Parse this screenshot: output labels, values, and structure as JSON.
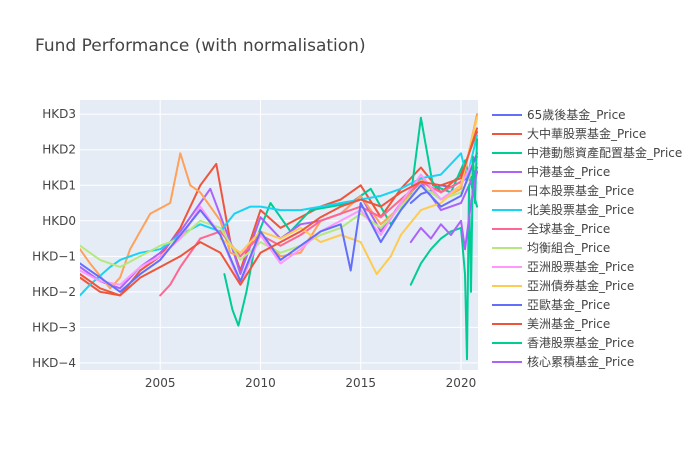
{
  "chart_data": {
    "type": "line",
    "title": "Fund Performance (with normalisation)",
    "xlabel": "",
    "ylabel": "",
    "xlim": [
      2001.0,
      2020.85
    ],
    "ylim": [
      -4.2,
      3.4
    ],
    "x_ticks": [
      2005,
      2010,
      2015,
      2020
    ],
    "y_ticks": [
      {
        "value": 3,
        "label": "HKD3"
      },
      {
        "value": 2,
        "label": "HKD2"
      },
      {
        "value": 1,
        "label": "HKD1"
      },
      {
        "value": 0,
        "label": "HKD0"
      },
      {
        "value": -1,
        "label": "HKD−1"
      },
      {
        "value": -2,
        "label": "HKD−2"
      },
      {
        "value": -3,
        "label": "HKD−3"
      },
      {
        "value": -4,
        "label": "HKD−4"
      }
    ],
    "grid": true,
    "legend_position": "right",
    "series": [
      {
        "name": "65歲後基金_Price",
        "color": "#636efa",
        "x": [
          2017.5,
          2018.0,
          2018.5,
          2019.0,
          2019.5,
          2020.0,
          2020.3,
          2020.6,
          2020.8
        ],
        "y": [
          0.5,
          0.75,
          0.85,
          1.0,
          0.95,
          1.1,
          1.2,
          1.25,
          1.35
        ]
      },
      {
        "name": "大中華股票基金_Price",
        "color": "#ef553b",
        "x": [
          2001.0,
          2002.0,
          2003.0,
          2004.0,
          2005.0,
          2006.0,
          2007.0,
          2007.8,
          2008.5,
          2009.0,
          2010.0,
          2011.0,
          2012.0,
          2013.0,
          2014.0,
          2015.0,
          2016.0,
          2017.0,
          2018.0,
          2019.0,
          2020.0,
          2020.8
        ],
        "y": [
          -1.6,
          -2.0,
          -2.1,
          -1.4,
          -1.0,
          -0.2,
          1.0,
          1.6,
          -0.6,
          -1.4,
          0.3,
          -0.2,
          0.1,
          0.4,
          0.6,
          1.0,
          0.1,
          0.9,
          1.5,
          0.8,
          1.3,
          2.5
        ]
      },
      {
        "name": "中港動態資產配置基金_Price",
        "color": "#00cc96",
        "x": [
          2008.2,
          2008.6,
          2008.9,
          2009.3,
          2009.8,
          2010.5,
          2011.5,
          2012.5,
          2013.5,
          2014.5,
          2015.5,
          2016.5,
          2017.5,
          2018.0,
          2018.6,
          2019.5,
          2020.2,
          2020.8
        ],
        "y": [
          -1.5,
          -2.5,
          -2.95,
          -2.0,
          -0.5,
          0.5,
          -0.3,
          0.3,
          0.4,
          0.5,
          0.9,
          -0.1,
          0.7,
          2.9,
          1.0,
          0.8,
          1.7,
          0.4
        ]
      },
      {
        "name": "中港基金_Price",
        "color": "#ab63fa",
        "x": [
          2001.0,
          2002.0,
          2003.0,
          2004.0,
          2005.0,
          2006.0,
          2007.0,
          2007.5,
          2008.5,
          2009.0,
          2010.0,
          2011.0,
          2012.0,
          2013.0,
          2014.0,
          2015.0,
          2016.0,
          2017.0,
          2018.0,
          2019.0,
          2020.0,
          2020.8
        ],
        "y": [
          -1.3,
          -1.7,
          -1.9,
          -1.3,
          -0.9,
          -0.3,
          0.5,
          0.9,
          -0.6,
          -1.5,
          0.1,
          -0.5,
          -0.1,
          0.0,
          0.2,
          0.7,
          -0.3,
          0.5,
          1.1,
          0.3,
          0.5,
          1.5
        ]
      },
      {
        "name": "日本股票基金_Price",
        "color": "#ffa15a",
        "x": [
          2001.0,
          2001.5,
          2002.5,
          2003.0,
          2003.5,
          2004.5,
          2005.5,
          2006.0,
          2006.5,
          2007.0,
          2007.5,
          2008.0,
          2008.5,
          2009.0,
          2010.0,
          2011.0,
          2012.0,
          2013.0,
          2014.0,
          2015.0,
          2016.0,
          2017.0,
          2018.0,
          2019.0,
          2020.0,
          2020.8
        ],
        "y": [
          -0.8,
          -1.2,
          -1.9,
          -1.6,
          -0.8,
          0.2,
          0.5,
          1.9,
          1.0,
          0.8,
          0.4,
          0.0,
          -0.9,
          -1.0,
          -0.4,
          -1.0,
          -0.9,
          0.0,
          0.2,
          0.7,
          -0.1,
          0.4,
          1.2,
          0.6,
          0.9,
          3.0
        ]
      },
      {
        "name": "北美股票基金_Price",
        "color": "#19d3f3",
        "x": [
          2001.0,
          2001.5,
          2002.5,
          2003.0,
          2004.0,
          2005.0,
          2006.0,
          2007.0,
          2008.0,
          2008.7,
          2009.5,
          2010.0,
          2011.0,
          2012.0,
          2013.0,
          2014.0,
          2015.0,
          2016.0,
          2017.0,
          2018.0,
          2019.0,
          2020.0,
          2020.3,
          2020.8
        ],
        "y": [
          -2.1,
          -1.8,
          -1.3,
          -1.1,
          -0.9,
          -0.8,
          -0.4,
          -0.1,
          -0.3,
          0.2,
          0.4,
          0.4,
          0.3,
          0.3,
          0.4,
          0.5,
          0.6,
          0.7,
          0.9,
          1.2,
          1.3,
          1.9,
          1.2,
          2.4
        ]
      },
      {
        "name": "全球基金_Price",
        "color": "#ff6692",
        "x": [
          2005.0,
          2005.5,
          2006.0,
          2007.0,
          2008.0,
          2009.0,
          2010.0,
          2011.0,
          2012.0,
          2013.0,
          2014.0,
          2015.0,
          2016.0,
          2017.0,
          2018.0,
          2019.0,
          2020.0,
          2020.8
        ],
        "y": [
          -2.1,
          -1.8,
          -1.3,
          -0.5,
          -0.3,
          -1.0,
          -0.4,
          -0.7,
          -0.4,
          0.0,
          0.2,
          0.4,
          0.1,
          0.6,
          1.1,
          0.8,
          1.1,
          1.8
        ]
      },
      {
        "name": "均衡組合_Price",
        "color": "#b6e880",
        "x": [
          2001.0,
          2002.0,
          2003.0,
          2004.0,
          2005.0,
          2006.0,
          2007.0,
          2008.0,
          2009.0,
          2010.0,
          2011.0,
          2012.0,
          2013.0,
          2014.0,
          2015.0,
          2016.0,
          2017.0,
          2018.0,
          2019.0,
          2020.0,
          2020.8
        ],
        "y": [
          -0.7,
          -1.1,
          -1.3,
          -1.0,
          -0.7,
          -0.5,
          0.0,
          -0.2,
          -1.1,
          -0.6,
          -0.9,
          -0.7,
          -0.4,
          -0.2,
          0.2,
          -0.2,
          0.4,
          1.0,
          0.6,
          0.8,
          1.6
        ]
      },
      {
        "name": "亞洲股票基金_Price",
        "color": "#ff97ff",
        "x": [
          2001.0,
          2002.0,
          2003.0,
          2004.0,
          2005.0,
          2006.0,
          2007.0,
          2008.0,
          2009.0,
          2010.0,
          2011.0,
          2012.0,
          2013.0,
          2014.0,
          2015.0,
          2016.0,
          2017.0,
          2018.0,
          2019.0,
          2020.0,
          2020.8
        ],
        "y": [
          -1.4,
          -1.7,
          -1.8,
          -1.3,
          -1.0,
          -0.5,
          0.4,
          -0.4,
          -1.8,
          -0.4,
          -1.2,
          -0.8,
          -0.3,
          0.0,
          0.3,
          -0.4,
          0.5,
          1.3,
          0.6,
          1.0,
          1.9
        ]
      },
      {
        "name": "亞洲債券基金_Price",
        "color": "#fecb52",
        "x": [
          2008.0,
          2009.0,
          2010.0,
          2011.0,
          2012.0,
          2013.0,
          2014.0,
          2015.0,
          2015.8,
          2016.5,
          2017.0,
          2018.0,
          2019.0,
          2020.0,
          2020.8
        ],
        "y": [
          -0.5,
          -0.9,
          -0.3,
          -0.5,
          -0.2,
          -0.6,
          -0.4,
          -0.6,
          -1.5,
          -1.0,
          -0.4,
          0.3,
          0.5,
          1.0,
          2.9
        ]
      },
      {
        "name": "亞歐基金_Price",
        "color": "#636efa",
        "x": [
          2001.0,
          2002.0,
          2003.0,
          2004.0,
          2005.0,
          2006.0,
          2007.0,
          2008.0,
          2009.0,
          2010.0,
          2011.0,
          2012.0,
          2013.0,
          2014.0,
          2014.5,
          2015.0,
          2016.0,
          2017.0,
          2018.0,
          2019.0,
          2020.0,
          2020.8
        ],
        "y": [
          -1.2,
          -1.6,
          -2.0,
          -1.5,
          -1.1,
          -0.4,
          0.3,
          -0.4,
          -1.7,
          -0.3,
          -1.1,
          -0.7,
          -0.3,
          -0.1,
          -1.4,
          0.5,
          -0.6,
          0.3,
          1.0,
          0.4,
          0.7,
          1.9
        ]
      },
      {
        "name": "美洲基金_Price",
        "color": "#ef553b",
        "x": [
          2001.0,
          2002.0,
          2003.0,
          2004.0,
          2005.0,
          2006.0,
          2007.0,
          2008.0,
          2009.0,
          2010.0,
          2011.0,
          2012.0,
          2013.0,
          2014.0,
          2015.0,
          2016.0,
          2017.0,
          2018.0,
          2019.0,
          2020.0,
          2020.8
        ],
        "y": [
          -1.5,
          -1.9,
          -2.1,
          -1.6,
          -1.3,
          -1.0,
          -0.6,
          -0.9,
          -1.8,
          -0.9,
          -0.6,
          -0.3,
          0.1,
          0.4,
          0.6,
          0.4,
          0.8,
          1.1,
          1.0,
          1.2,
          2.6
        ]
      },
      {
        "name": "香港股票基金_Price",
        "color": "#00cc96",
        "x": [
          2017.5,
          2018.0,
          2018.5,
          2019.0,
          2019.5,
          2020.0,
          2020.2,
          2020.3,
          2020.4,
          2020.5,
          2020.6,
          2020.7,
          2020.8
        ],
        "y": [
          -1.8,
          -1.2,
          -0.8,
          -0.5,
          -0.3,
          -0.2,
          -1.5,
          -3.9,
          1.0,
          -2.0,
          1.8,
          0.5,
          2.3
        ]
      },
      {
        "name": "核心累積基金_Price",
        "color": "#ab63fa",
        "x": [
          2017.5,
          2018.0,
          2018.5,
          2019.0,
          2019.5,
          2020.0,
          2020.2,
          2020.5,
          2020.8
        ],
        "y": [
          -0.6,
          -0.2,
          -0.5,
          -0.1,
          -0.4,
          0.0,
          -0.8,
          0.5,
          1.4
        ]
      }
    ]
  }
}
